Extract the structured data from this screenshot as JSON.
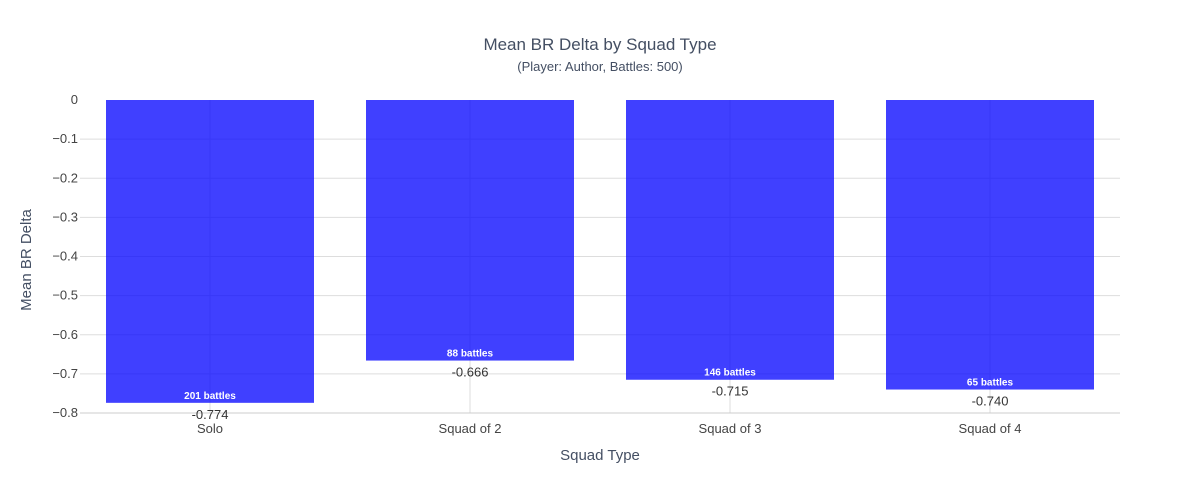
{
  "chart_data": {
    "type": "bar",
    "title": "Mean BR Delta by Squad Type",
    "subtitle": "(Player: Author, Battles: 500)",
    "xlabel": "Squad Type",
    "ylabel": "Mean BR Delta",
    "categories": [
      "Solo",
      "Squad of 2",
      "Squad of 3",
      "Squad of 4"
    ],
    "values": [
      -0.774,
      -0.666,
      -0.715,
      -0.74
    ],
    "value_labels": [
      "-0.774",
      "-0.666",
      "-0.715",
      "-0.740"
    ],
    "bar_annotations": [
      "201 battles",
      "88 battles",
      "146 battles",
      "65 battles"
    ],
    "ylim": [
      -0.8,
      0
    ],
    "yticks": [
      0,
      -0.1,
      -0.2,
      -0.3,
      -0.4,
      -0.5,
      -0.6,
      -0.7,
      -0.8
    ],
    "ytick_labels": [
      "0",
      "−0.1",
      "−0.2",
      "−0.3",
      "−0.4",
      "−0.5",
      "−0.6",
      "−0.7",
      "−0.8"
    ],
    "grid": true,
    "bar_color": "#0000ff",
    "bar_opacity": 0.75
  }
}
